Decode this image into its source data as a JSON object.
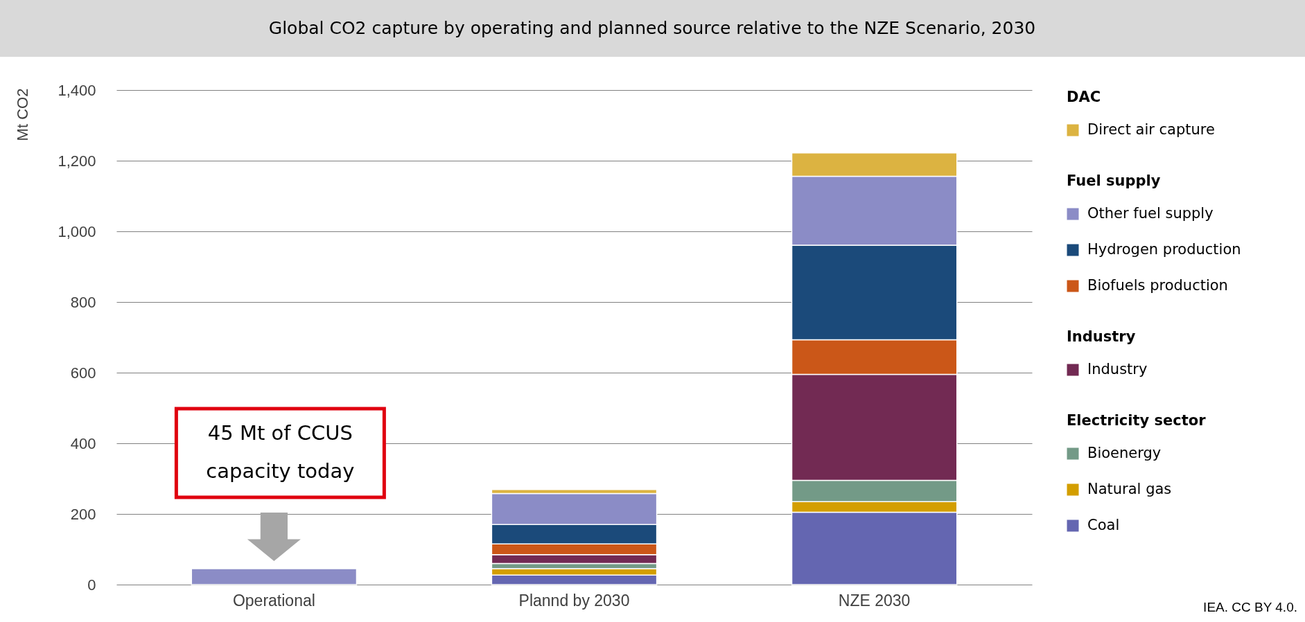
{
  "chart_data": {
    "type": "bar",
    "title": "Global CO2 capture by operating and planned source relative to the NZE Scenario, 2030",
    "ylabel": "Mt CO2",
    "categories": [
      "Operational",
      "Plannd by 2030",
      "NZE 2030"
    ],
    "stacked": true,
    "series": [
      {
        "name": "Coal",
        "color": "#6466b1",
        "values": [
          null,
          27,
          205
        ]
      },
      {
        "name": "Natural gas",
        "color": "#d39e00",
        "values": [
          null,
          18,
          30
        ]
      },
      {
        "name": "Bioenergy",
        "color": "#739a87",
        "values": [
          null,
          15,
          60
        ]
      },
      {
        "name": "Industry",
        "color": "#722a53",
        "values": [
          null,
          25,
          300
        ]
      },
      {
        "name": "Biofuels production",
        "color": "#cb5718",
        "values": [
          null,
          30,
          98
        ]
      },
      {
        "name": "Hydrogen production",
        "color": "#1b4a7a",
        "values": [
          null,
          55,
          268
        ]
      },
      {
        "name": "Other fuel supply",
        "color": "#8b8cc6",
        "values": [
          45,
          88,
          195
        ]
      },
      {
        "name": "Direct air capture",
        "color": "#dcb341",
        "values": [
          null,
          11,
          66
        ]
      }
    ],
    "ylim": [
      0,
      1400
    ],
    "yticks": [
      0,
      200,
      400,
      600,
      800,
      {
        "value": 1000,
        "label": "1,000"
      },
      {
        "value": 1200,
        "label": "1,200"
      },
      {
        "value": 1400,
        "label": "1,400"
      }
    ],
    "grid": "y",
    "legend": "right",
    "annotations": [
      "DAC",
      "Fuel supply",
      "Industry",
      "Electricity sector",
      "45 Mt of CCUS capacity today",
      "IEA. CC BY 4.0."
    ]
  }
}
